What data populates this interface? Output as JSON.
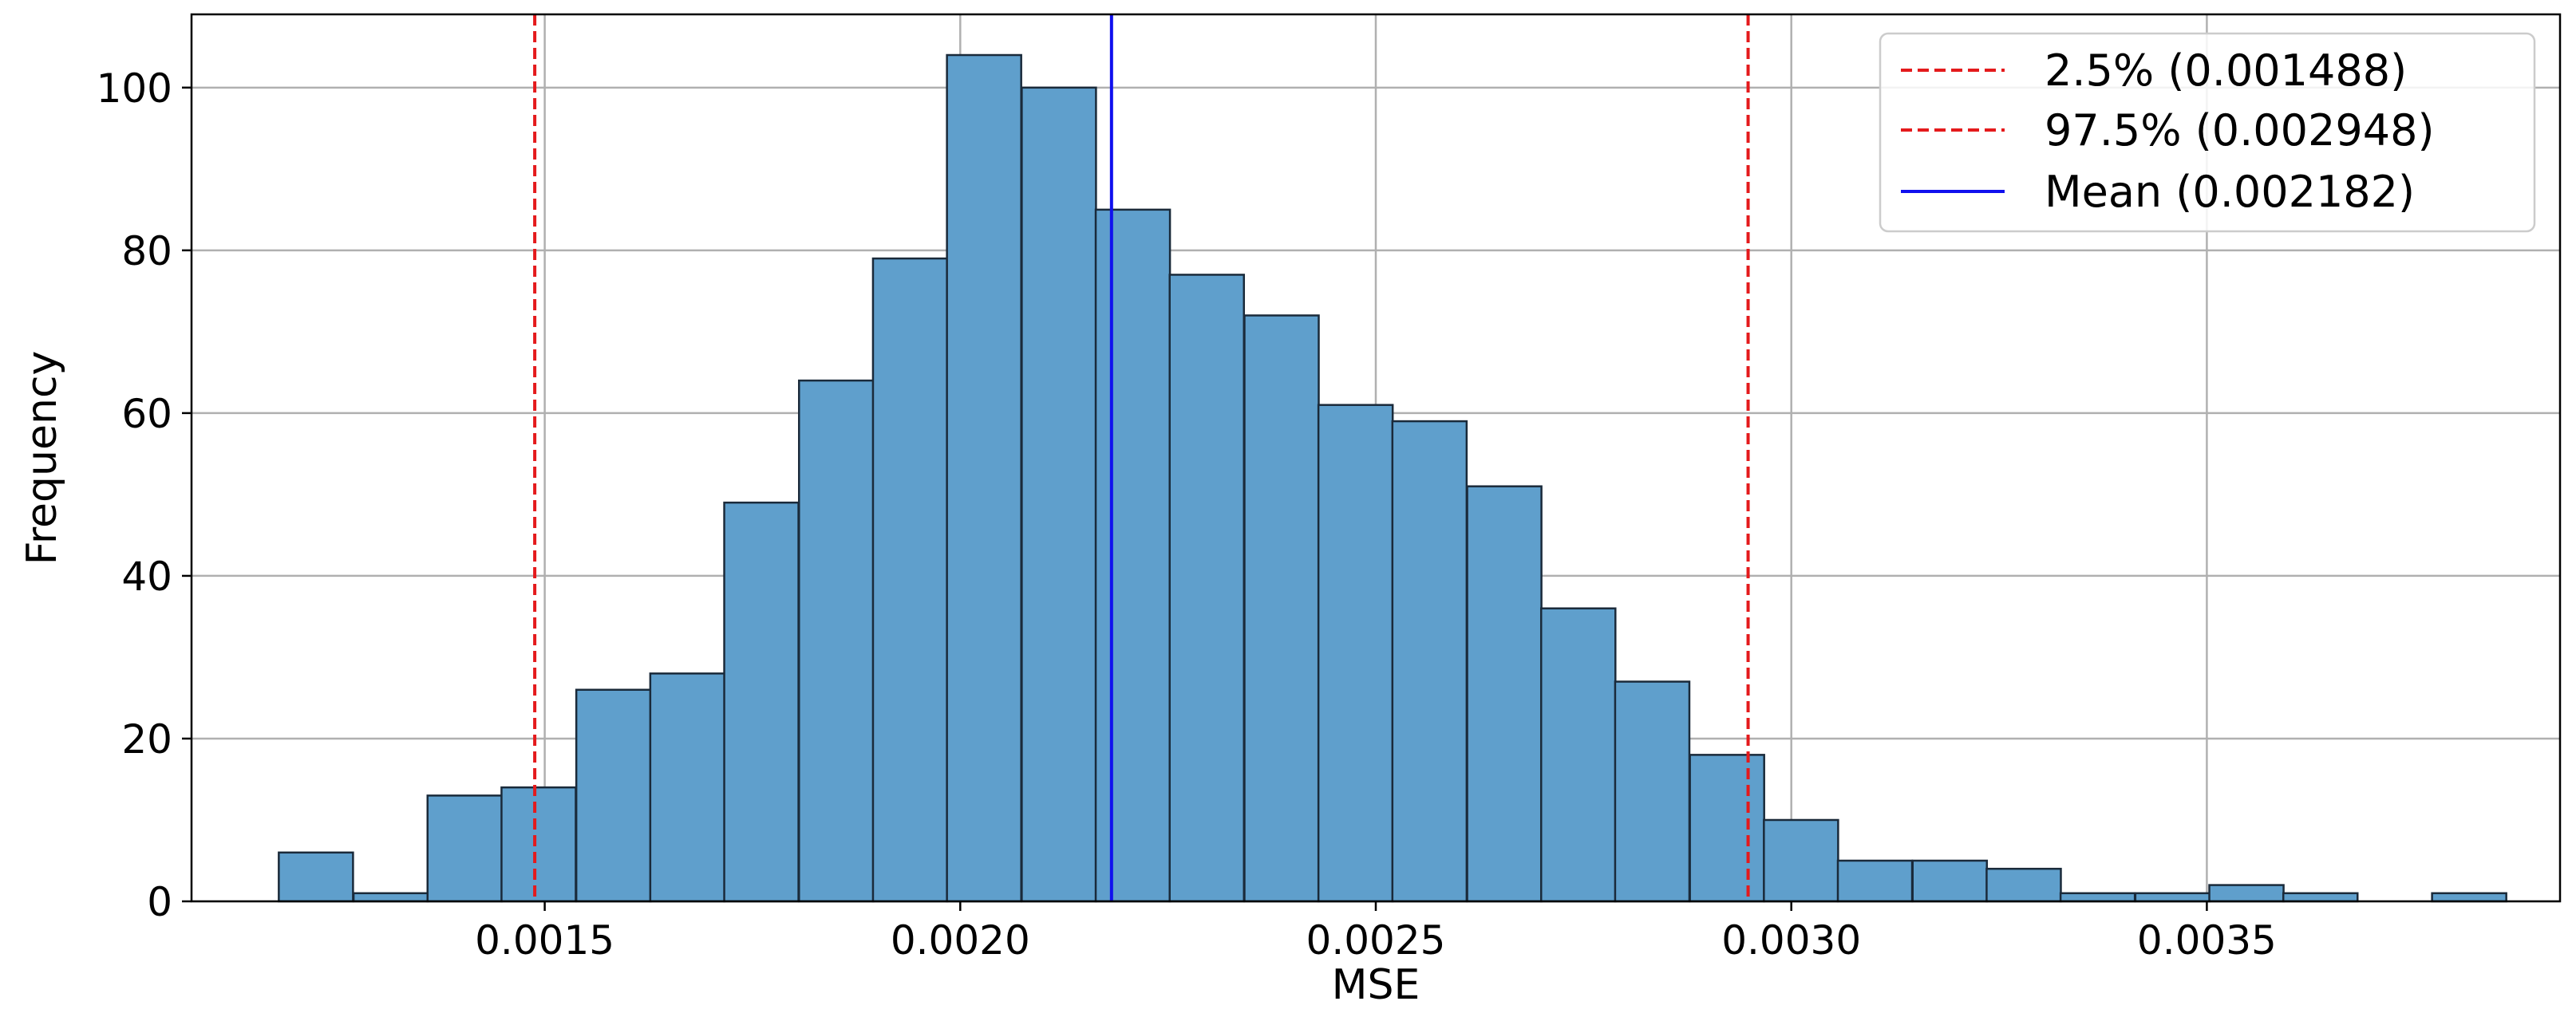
{
  "chart_data": {
    "type": "bar",
    "xlabel": "MSE",
    "ylabel": "Frequency",
    "xlim": [
      0.001075,
      0.003925
    ],
    "ylim": [
      0,
      109
    ],
    "grid": true,
    "legend_position": "top-right",
    "bin_edges": [
      0.00118,
      0.00127,
      0.001359,
      0.001448,
      0.001538,
      0.001627,
      0.001716,
      0.001806,
      0.001895,
      0.001984,
      0.002074,
      0.002163,
      0.002252,
      0.002342,
      0.002431,
      0.00252,
      0.00261,
      0.002699,
      0.002788,
      0.002878,
      0.002967,
      0.003056,
      0.003146,
      0.003235,
      0.003324,
      0.003414,
      0.003503,
      0.003592,
      0.003682,
      0.003771
    ],
    "counts": [
      6,
      1,
      13,
      14,
      26,
      28,
      49,
      64,
      79,
      104,
      100,
      85,
      77,
      72,
      61,
      59,
      51,
      36,
      27,
      18,
      10,
      5,
      5,
      4,
      1,
      1,
      2,
      1,
      0,
      1
    ],
    "bar_color": "#5f9fcc",
    "bar_edge_color": "#1a2a3a",
    "x_ticks": [
      {
        "value": 0.0015,
        "label": "0.0015"
      },
      {
        "value": 0.002,
        "label": "0.0020"
      },
      {
        "value": 0.0025,
        "label": "0.0025"
      },
      {
        "value": 0.003,
        "label": "0.0030"
      },
      {
        "value": 0.0035,
        "label": "0.0035"
      }
    ],
    "y_ticks": [
      {
        "value": 0,
        "label": "0"
      },
      {
        "value": 20,
        "label": "20"
      },
      {
        "value": 40,
        "label": "40"
      },
      {
        "value": 60,
        "label": "60"
      },
      {
        "value": 80,
        "label": "80"
      },
      {
        "value": 100,
        "label": "100"
      }
    ],
    "reference_lines": [
      {
        "x": 0.001488,
        "label": "2.5% (0.001488)",
        "color": "#e41a1c",
        "style": "dashed"
      },
      {
        "x": 0.002948,
        "label": "97.5% (0.002948)",
        "color": "#e41a1c",
        "style": "dashed"
      },
      {
        "x": 0.002182,
        "label": "Mean (0.002182)",
        "color": "#1010ee",
        "style": "solid"
      }
    ]
  }
}
